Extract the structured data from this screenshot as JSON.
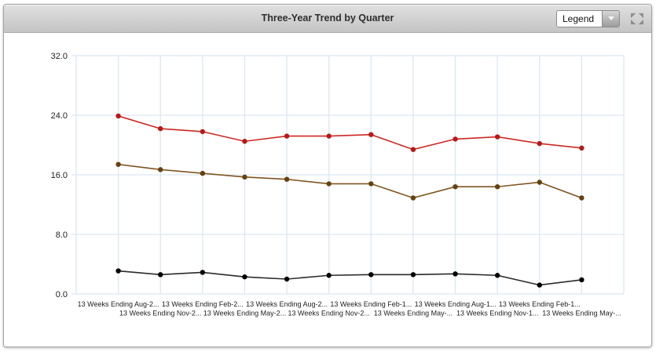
{
  "header": {
    "title": "Three-Year Trend by Quarter",
    "legend_dropdown": {
      "value": "Legend"
    },
    "icons": {
      "dropdown_arrow": "chevron-down-icon",
      "expand": "expand-icon"
    }
  },
  "chart_data": {
    "type": "line",
    "title": "Three-Year Trend by Quarter",
    "x_labels": [
      "13 Weeks Ending Aug-2...",
      "13 Weeks Ending Nov-2...",
      "13 Weeks Ending Feb-2...",
      "13 Weeks Ending May-2...",
      "13 Weeks Ending Aug-2...",
      "13 Weeks Ending Nov-2...",
      "13 Weeks Ending Feb-1...",
      "13 Weeks Ending May-...",
      "13 Weeks Ending Aug-1...",
      "13 Weeks Ending Nov-1...",
      "13 Weeks Ending Feb-1...",
      "13 Weeks Ending May-..."
    ],
    "y_ticks": [
      "32.0",
      "24.0",
      "16.0",
      "8.0",
      "0.0"
    ],
    "ylim": [
      0,
      32
    ],
    "grid": true,
    "legend_position": "collapsed-dropdown",
    "series": [
      {
        "name": "red-series",
        "color": "#cc2823",
        "marker_color": "#b51a16",
        "values": [
          23.9,
          22.2,
          21.8,
          20.5,
          21.2,
          21.2,
          21.4,
          19.4,
          20.8,
          21.1,
          20.2,
          19.6
        ]
      },
      {
        "name": "brown-series",
        "color": "#7e5620",
        "marker_color": "#64420f",
        "values": [
          17.4,
          16.7,
          16.2,
          15.7,
          15.4,
          14.8,
          14.8,
          12.9,
          14.4,
          14.4,
          15.0,
          12.9
        ]
      },
      {
        "name": "black-series",
        "color": "#2a2a2a",
        "marker_color": "#000000",
        "values": [
          3.1,
          2.6,
          2.9,
          2.3,
          2.0,
          2.5,
          2.6,
          2.6,
          2.7,
          2.5,
          1.2,
          1.9
        ]
      }
    ]
  },
  "colors": {
    "grid": "#dce7f3",
    "axis_text": "#222222",
    "icon_gray": "#8f8f8f"
  }
}
